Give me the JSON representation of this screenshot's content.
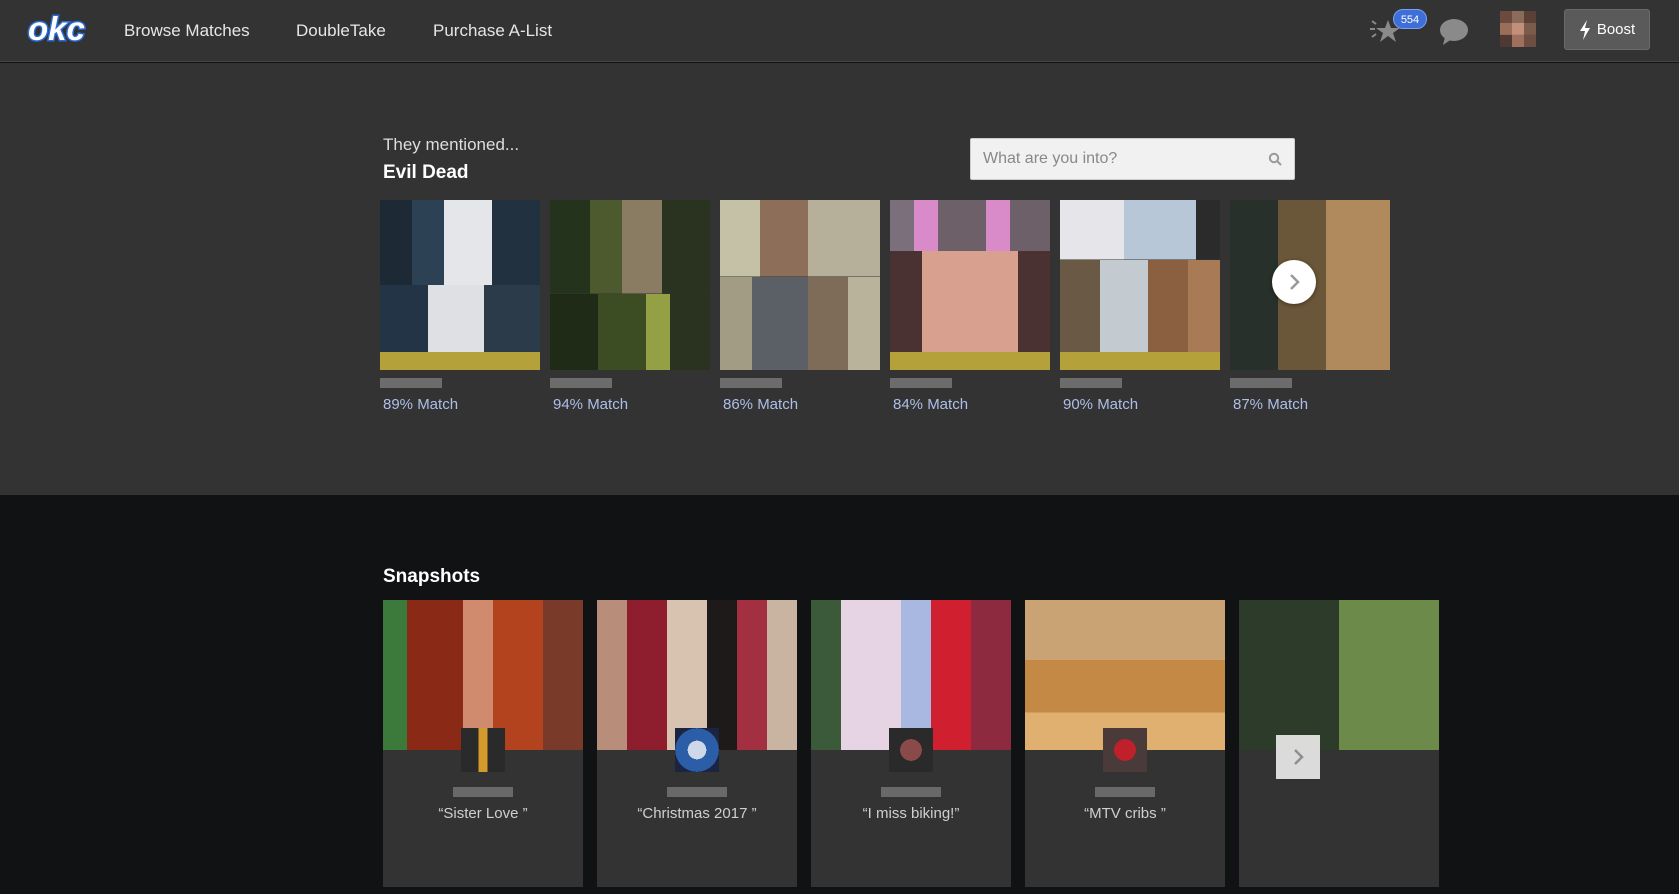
{
  "nav": {
    "logo_text": "okc",
    "links": [
      {
        "label": "Browse Matches"
      },
      {
        "label": "DoubleTake"
      },
      {
        "label": "Purchase A-List"
      }
    ],
    "notification_count": "554",
    "boost_label": "Boost"
  },
  "mentions": {
    "kicker": "They mentioned...",
    "topic": "Evil Dead",
    "search_placeholder": "What are you into?",
    "matches": [
      {
        "match": "89% Match",
        "highlight": true
      },
      {
        "match": "94% Match",
        "highlight": false
      },
      {
        "match": "86% Match",
        "highlight": false
      },
      {
        "match": "84% Match",
        "highlight": true
      },
      {
        "match": "90% Match",
        "highlight": true
      },
      {
        "match": "87% Match",
        "highlight": false
      }
    ]
  },
  "snapshots": {
    "title": "Snapshots",
    "items": [
      {
        "caption": "“Sister Love ”"
      },
      {
        "caption": "“Christmas 2017 ”"
      },
      {
        "caption": "“I miss biking!”"
      },
      {
        "caption": "“MTV cribs ”"
      },
      {
        "caption": ""
      }
    ]
  },
  "colors": {
    "nav_bg": "#333333",
    "page_bg": "#111214",
    "match_text": "#aebfe8",
    "badge": "#3e6fd8",
    "highlight_bar": "#b5a13a"
  }
}
